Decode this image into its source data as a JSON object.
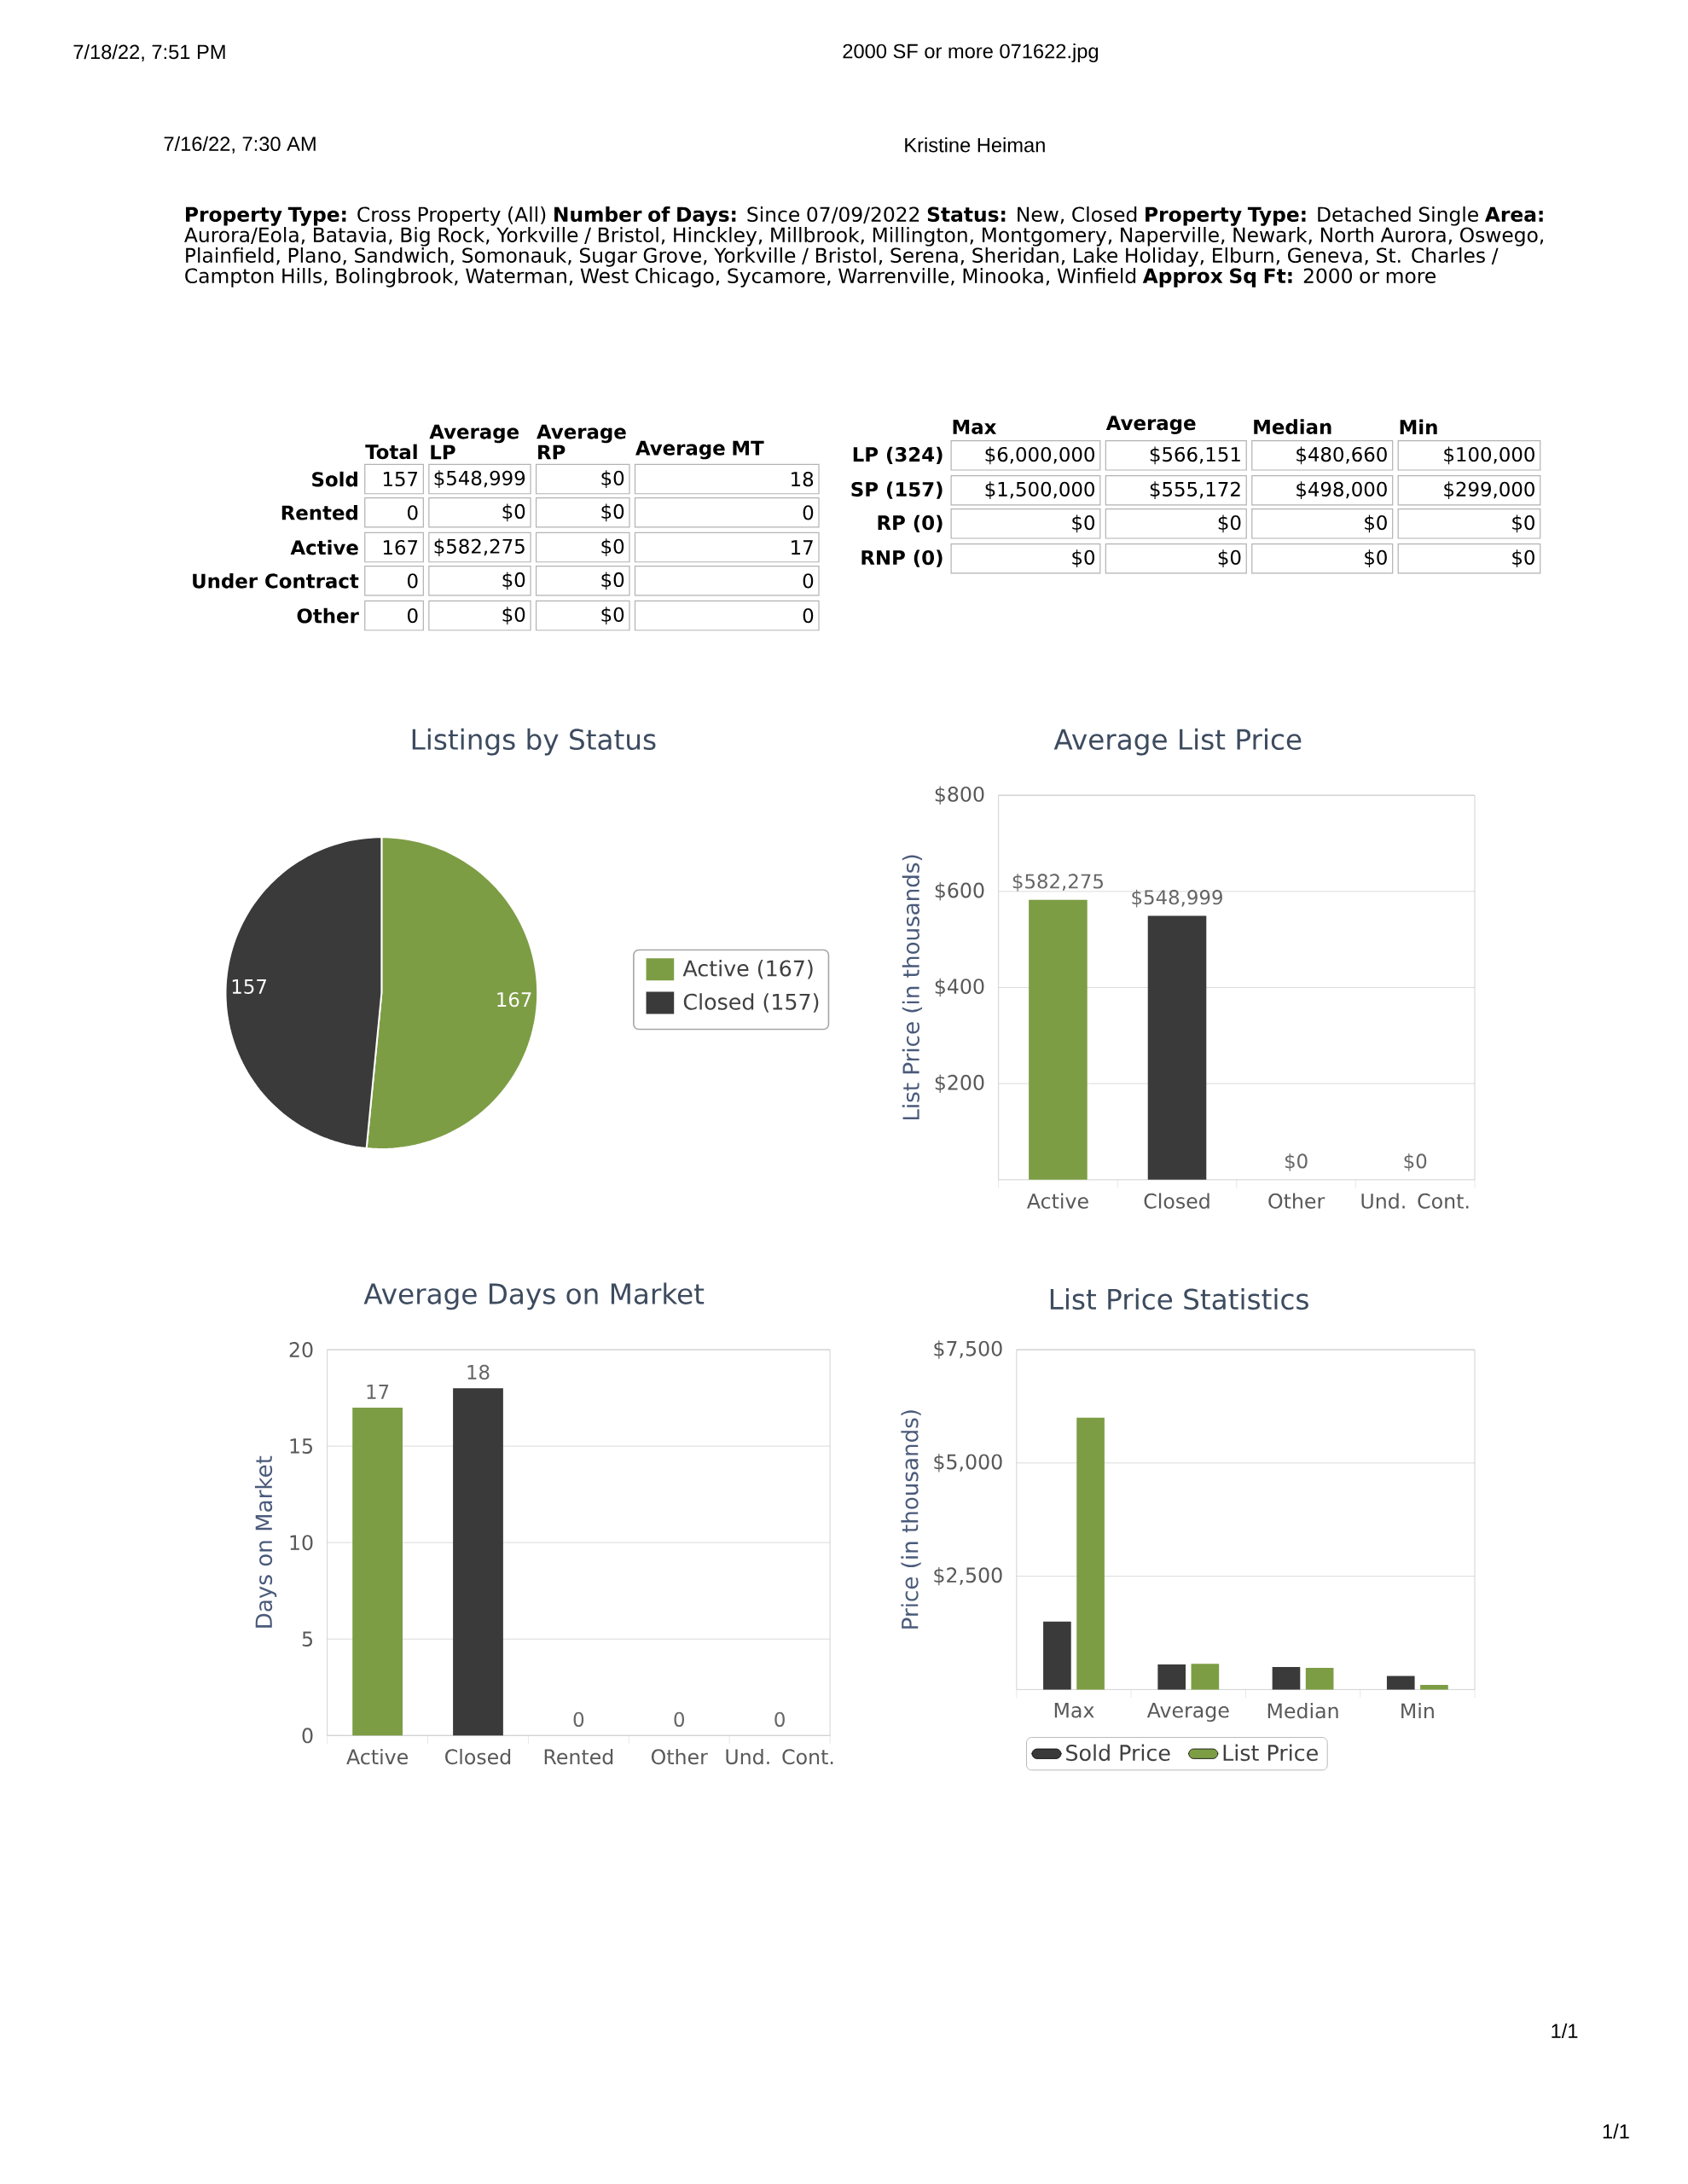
{
  "chart_data": [
    {
      "type": "other",
      "annotations": [
        "7/18/22, 7:51 PM",
        "2000 SF or more 071622.jpg",
        "7/16/22, 7:30 AM",
        "Kristine Heiman",
        "**Property Type:** Cross Property (All)  **Number of Days:** Since 07/09/2022  **Status:** New, Closed  **Property Type:** Detached Single  **Area:** Aurora/Eola, Batavia, Big Rock, Yorkville / Bristol, Hinckley, Millbrook, Millington, Montgomery, Naperville, Newark, North Aurora, Oswego, Plainfield, Plano, Sandwich, Somonauk, Sugar Grove, Yorkville / Bristol, Serena, Sheridan, Lake Holiday, Elburn, Geneva, St. Charles / Campton Hills, Bolingbrook, Waterman, West Chicago, Sycamore, Warrenville, Minooka, Winfield  **Approx Sq Ft:** 2000 or more",
        "1/1",
        "1/1"
      ]
    },
    {
      "type": "other",
      "categories": [
        "Total",
        "Average LP",
        "Average RP",
        "Average MT"
      ],
      "y_categories": [
        "Sold",
        "Rented",
        "Active",
        "Under Contract",
        "Other"
      ],
      "cell_labels": [
        [
          "157",
          "$548,999",
          "$0",
          "18"
        ],
        [
          "0",
          "$0",
          "$0",
          "0"
        ],
        [
          "167",
          "$582,275",
          "$0",
          "17"
        ],
        [
          "0",
          "$0",
          "$0",
          "0"
        ],
        [
          "0",
          "$0",
          "$0",
          "0"
        ]
      ]
    },
    {
      "type": "other",
      "categories": [
        "Max",
        "Average",
        "Median",
        "Min"
      ],
      "y_categories": [
        "LP (324)",
        "SP (157)",
        "RP (0)",
        "RNP (0)"
      ],
      "cell_labels": [
        [
          "$6,000,000",
          "$566,151",
          "$480,660",
          "$100,000"
        ],
        [
          "$1,500,000",
          "$555,172",
          "$498,000",
          "$299,000"
        ],
        [
          "$0",
          "$0",
          "$0",
          "$0"
        ],
        [
          "$0",
          "$0",
          "$0",
          "$0"
        ]
      ]
    },
    {
      "type": "pie",
      "title": "Listings by Status",
      "categories": [
        "Active (167)",
        "Closed (157)"
      ],
      "values": [
        167,
        157
      ],
      "colors": [
        "#7d9d45",
        "#3a3a3a"
      ],
      "value_labels": [
        "167",
        "157"
      ],
      "legend": "right"
    },
    {
      "type": "bar",
      "title": "Average List Price",
      "ylabel": "List Price (in thousands)",
      "categories": [
        "Active",
        "Closed",
        "Other",
        "Und. Cont."
      ],
      "values": [
        582.275,
        548.999,
        0,
        0
      ],
      "colors": [
        "#7d9d45",
        "#3a3a3a",
        "#7d9d45",
        "#3a3a3a"
      ],
      "annotations": [
        {
          "text": "$582,275",
          "x": "Active",
          "y": 582.275
        },
        {
          "text": "$548,999",
          "x": "Closed",
          "y": 548.999
        },
        {
          "text": "$0",
          "x": "Other",
          "y": 0
        },
        {
          "text": "$0",
          "x": "Und. Cont.",
          "y": 0
        }
      ],
      "ylim": [
        0,
        800
      ],
      "yticks": [
        {
          "value": 200,
          "label": "$200"
        },
        {
          "value": 400,
          "label": "$400"
        },
        {
          "value": 600,
          "label": "$600"
        },
        {
          "value": 800,
          "label": "$800"
        }
      ],
      "grid": "y"
    },
    {
      "type": "bar",
      "title": "Average Days on Market",
      "ylabel": "Days on Market",
      "categories": [
        "Active",
        "Closed",
        "Rented",
        "Other",
        "Und. Cont."
      ],
      "values": [
        17,
        18,
        0,
        0,
        0
      ],
      "colors": [
        "#7d9d45",
        "#3a3a3a",
        "#7d9d45",
        "#3a3a3a",
        "#7d9d45"
      ],
      "data_labels": true,
      "ylim": [
        0,
        20
      ],
      "yticks": [
        0,
        5,
        10,
        15,
        20
      ],
      "grid": "y"
    },
    {
      "type": "bar",
      "title": "List Price Statistics",
      "ylabel": "Price (in thousands)",
      "categories": [
        "Max",
        "Average",
        "Median",
        "Min"
      ],
      "series": [
        {
          "name": "Sold Price",
          "color": "#3a3a3a",
          "values": [
            1500,
            555.172,
            498,
            299
          ]
        },
        {
          "name": "List Price",
          "color": "#7d9d45",
          "values": [
            6000,
            566.151,
            480.66,
            100
          ]
        }
      ],
      "ylim": [
        0,
        7500
      ],
      "yticks": [
        {
          "value": 2500,
          "label": "$2,500"
        },
        {
          "value": 5000,
          "label": "$5,000"
        },
        {
          "value": 7500,
          "label": "$7,500"
        }
      ],
      "grid": "y",
      "legend": "bottom"
    }
  ]
}
